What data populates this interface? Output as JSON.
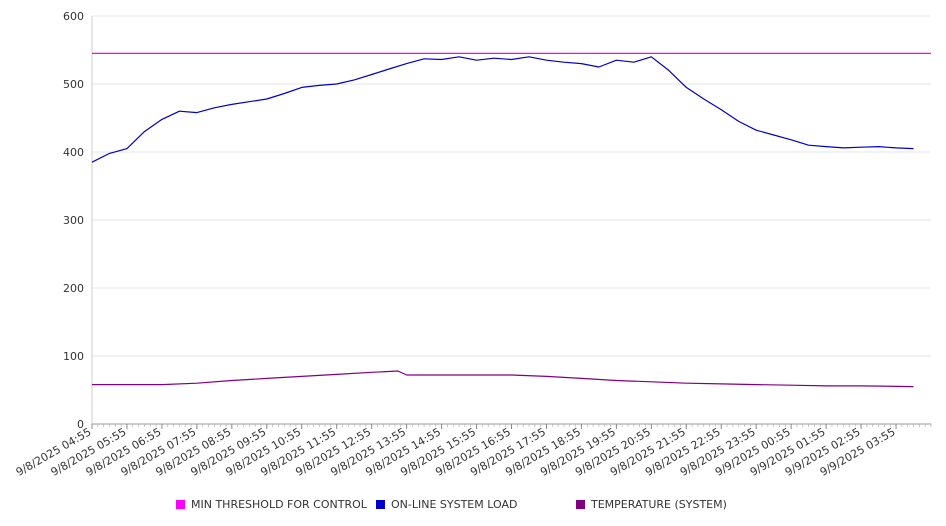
{
  "chart_data": {
    "type": "line",
    "title": "",
    "xlabel": "",
    "ylabel": "",
    "ylim": [
      0,
      600
    ],
    "y_ticks": [
      0,
      100,
      200,
      300,
      400,
      500,
      600
    ],
    "x_tick_labels": [
      "9/8/2025 04:55",
      "9/8/2025 05:55",
      "9/8/2025 06:55",
      "9/8/2025 07:55",
      "9/8/2025 08:55",
      "9/8/2025 09:55",
      "9/8/2025 10:55",
      "9/8/2025 11:55",
      "9/8/2025 12:55",
      "9/8/2025 13:55",
      "9/8/2025 14:55",
      "9/8/2025 15:55",
      "9/8/2025 16:55",
      "9/8/2025 17:55",
      "9/8/2025 18:55",
      "9/8/2025 19:55",
      "9/8/2025 20:55",
      "9/8/2025 21:55",
      "9/8/2025 22:55",
      "9/8/2025 23:55",
      "9/9/2025 00:55",
      "9/9/2025 01:55",
      "9/9/2025 02:55",
      "9/9/2025 03:55"
    ],
    "grid": true,
    "legend_position": "bottom",
    "series": [
      {
        "name": "MIN THRESHOLD FOR CONTROL",
        "color": "#ff00ff",
        "x": [
          "9/8/2025 04:55",
          "9/9/2025 04:55"
        ],
        "y": [
          545,
          545
        ]
      },
      {
        "name": "ON-LINE SYSTEM LOAD",
        "color": "#0000cc",
        "x": [
          "9/8/2025 04:55",
          "9/8/2025 05:25",
          "9/8/2025 05:55",
          "9/8/2025 06:25",
          "9/8/2025 06:55",
          "9/8/2025 07:25",
          "9/8/2025 07:55",
          "9/8/2025 08:25",
          "9/8/2025 08:55",
          "9/8/2025 09:25",
          "9/8/2025 09:55",
          "9/8/2025 10:25",
          "9/8/2025 10:55",
          "9/8/2025 11:25",
          "9/8/2025 11:55",
          "9/8/2025 12:25",
          "9/8/2025 12:55",
          "9/8/2025 13:25",
          "9/8/2025 13:55",
          "9/8/2025 14:25",
          "9/8/2025 14:55",
          "9/8/2025 15:25",
          "9/8/2025 15:55",
          "9/8/2025 16:25",
          "9/8/2025 16:55",
          "9/8/2025 17:25",
          "9/8/2025 17:55",
          "9/8/2025 18:25",
          "9/8/2025 18:55",
          "9/8/2025 19:25",
          "9/8/2025 19:55",
          "9/8/2025 20:25",
          "9/8/2025 20:55",
          "9/8/2025 21:25",
          "9/8/2025 21:55",
          "9/8/2025 22:25",
          "9/8/2025 22:55",
          "9/8/2025 23:25",
          "9/8/2025 23:55",
          "9/9/2025 00:25",
          "9/9/2025 00:55",
          "9/9/2025 01:25",
          "9/9/2025 01:55",
          "9/9/2025 02:25",
          "9/9/2025 02:55",
          "9/9/2025 03:25",
          "9/9/2025 03:55",
          "9/9/2025 04:25"
        ],
        "y": [
          385,
          398,
          405,
          430,
          448,
          460,
          458,
          465,
          470,
          474,
          478,
          486,
          495,
          498,
          500,
          506,
          514,
          522,
          530,
          537,
          536,
          540,
          535,
          538,
          536,
          540,
          535,
          532,
          530,
          525,
          535,
          532,
          540,
          520,
          495,
          478,
          462,
          445,
          432,
          425,
          418,
          410,
          408,
          406,
          407,
          408,
          406,
          405
        ]
      },
      {
        "name": "TEMPERATURE (SYSTEM)",
        "color": "#800080",
        "x": [
          "9/8/2025 04:55",
          "9/8/2025 06:55",
          "9/8/2025 07:55",
          "9/8/2025 08:55",
          "9/8/2025 09:55",
          "9/8/2025 10:55",
          "9/8/2025 11:55",
          "9/8/2025 12:55",
          "9/8/2025 13:40",
          "9/8/2025 13:55",
          "9/8/2025 15:55",
          "9/8/2025 16:55",
          "9/8/2025 17:55",
          "9/8/2025 18:55",
          "9/8/2025 19:55",
          "9/8/2025 20:55",
          "9/8/2025 21:55",
          "9/8/2025 22:55",
          "9/8/2025 23:55",
          "9/9/2025 00:55",
          "9/9/2025 01:55",
          "9/9/2025 02:55",
          "9/9/2025 04:25"
        ],
        "y": [
          58,
          58,
          60,
          64,
          67,
          70,
          73,
          76,
          78,
          72,
          72,
          72,
          70,
          67,
          64,
          62,
          60,
          59,
          58,
          57,
          56,
          56,
          55
        ]
      }
    ]
  }
}
